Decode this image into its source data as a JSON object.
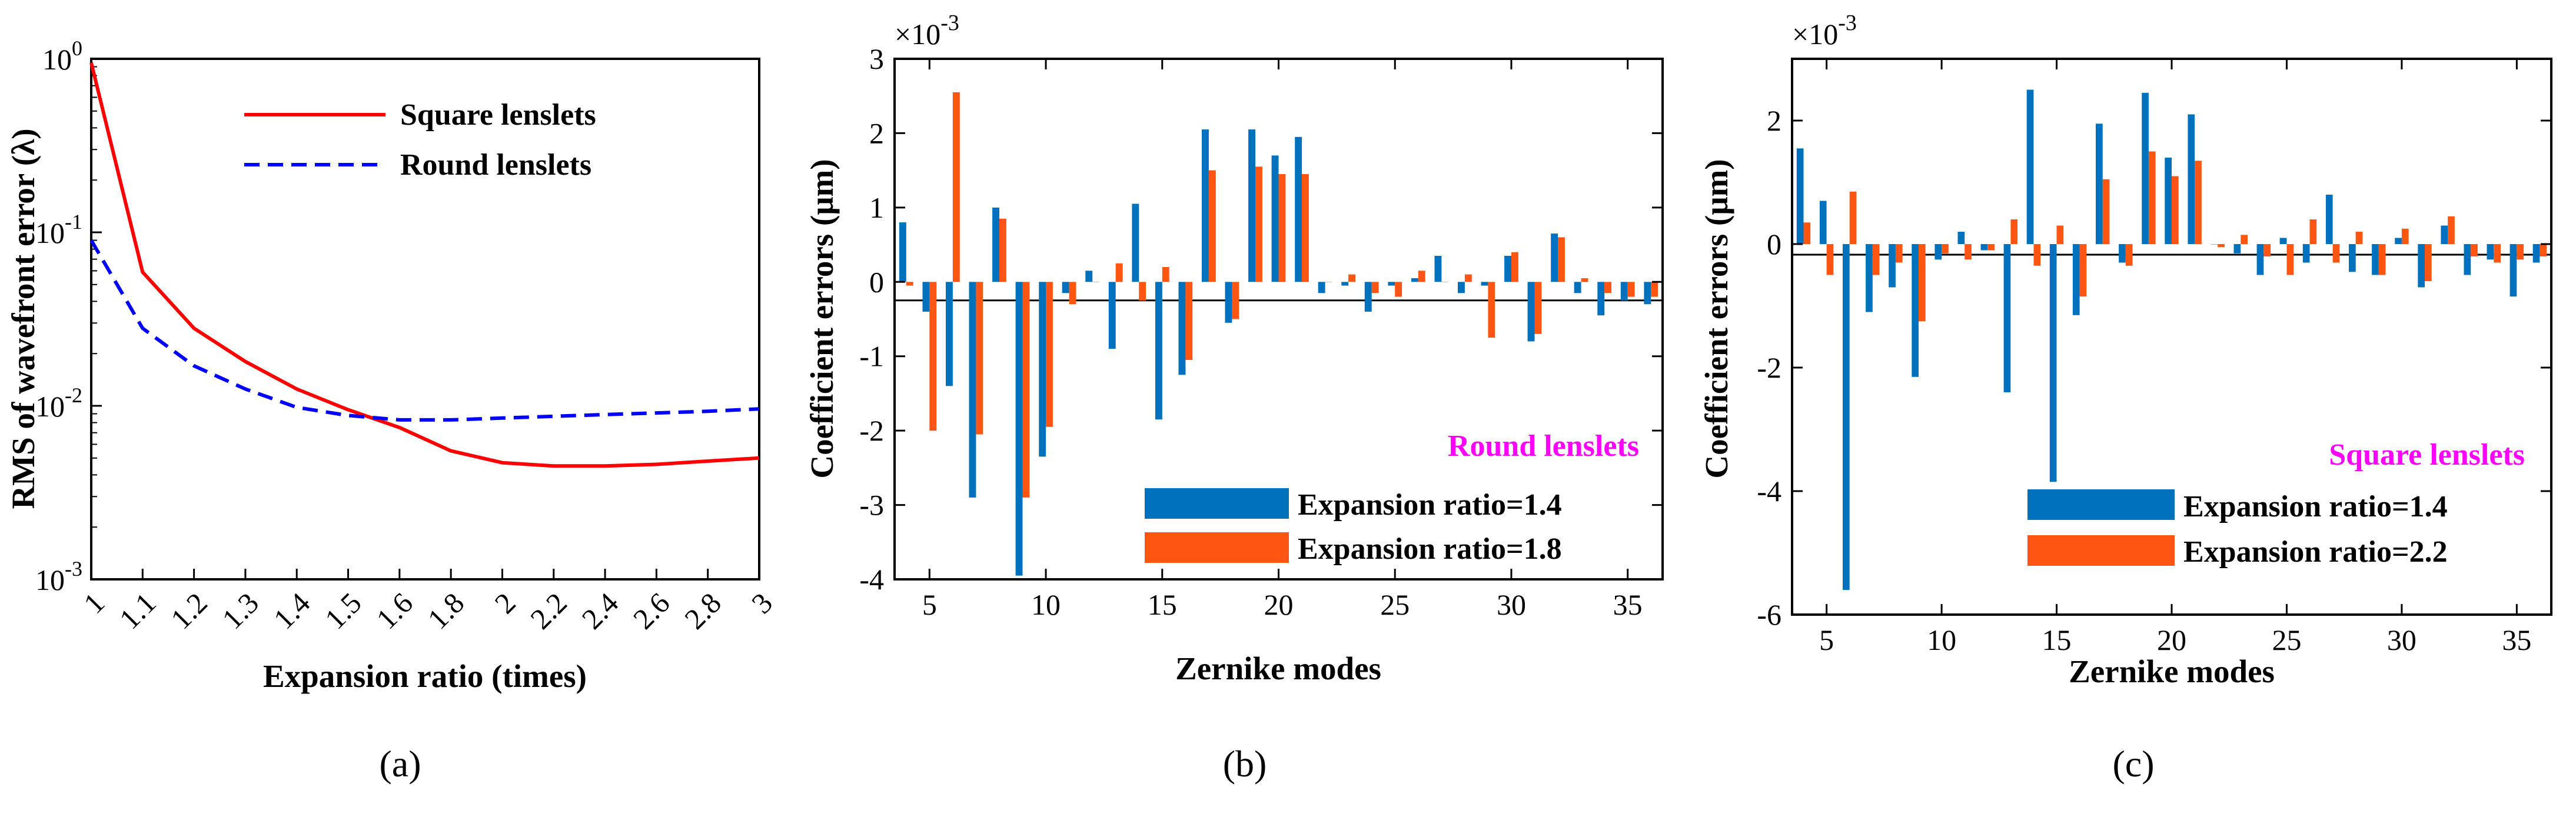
{
  "colors": {
    "red": "#ff0000",
    "blue": "#0000ff",
    "bar_blue": "#0072bd",
    "bar_orange": "#ff5512",
    "note": "#ff00ff"
  },
  "chart_data": [
    {
      "type": "line",
      "panel_label": "(a)",
      "title": "",
      "xlabel": "Expansion ratio (times)",
      "ylabel": "RMS of wavefront error (λ)",
      "yscale": "log",
      "ylim": [
        0.001,
        1
      ],
      "yticks": [
        {
          "v": 1,
          "base": "10",
          "exp": "0"
        },
        {
          "v": 0.1,
          "base": "10",
          "exp": "-1"
        },
        {
          "v": 0.01,
          "base": "10",
          "exp": "-2"
        },
        {
          "v": 0.001,
          "base": "10",
          "exp": "-3"
        }
      ],
      "categories": [
        "1",
        "1.1",
        "1.2",
        "1.3",
        "1.4",
        "1.5",
        "1.6",
        "1.8",
        "2",
        "2.2",
        "2.4",
        "2.6",
        "2.8",
        "3"
      ],
      "series": [
        {
          "name": "Square lenslets",
          "color": "#ff0000",
          "dash": "solid",
          "values": [
            0.95,
            0.059,
            0.028,
            0.018,
            0.0125,
            0.0095,
            0.0075,
            0.0055,
            0.0047,
            0.0045,
            0.0045,
            0.0046,
            0.0048,
            0.005
          ]
        },
        {
          "name": "Round lenslets",
          "color": "#0000ff",
          "dash": "dashed",
          "values": [
            0.09,
            0.028,
            0.017,
            0.0125,
            0.0098,
            0.0088,
            0.0083,
            0.0083,
            0.0085,
            0.0087,
            0.0089,
            0.0091,
            0.0093,
            0.0096
          ]
        }
      ],
      "legend_position": "top-right"
    },
    {
      "type": "bar",
      "panel_label": "(b)",
      "xlabel": "Zernike modes",
      "ylabel": "Coefficient errors (μm)",
      "scale_base": "×10",
      "scale_exp": "-3",
      "annotation": "Round lenslets",
      "ylim": [
        -4,
        3
      ],
      "yticks": [
        "-4",
        "-3",
        "-2",
        "-1",
        "0",
        "1",
        "2",
        "3"
      ],
      "xlim": [
        4,
        36
      ],
      "xticks": [
        "5",
        "10",
        "15",
        "20",
        "25",
        "30",
        "35"
      ],
      "x": [
        4,
        5,
        6,
        7,
        8,
        9,
        10,
        11,
        12,
        13,
        14,
        15,
        16,
        17,
        18,
        19,
        20,
        21,
        22,
        23,
        24,
        25,
        26,
        27,
        28,
        29,
        30,
        31,
        32,
        33,
        34,
        35,
        36
      ],
      "series": [
        {
          "name": "Expansion ratio=1.4",
          "color": "#0072bd",
          "values": [
            0.8,
            -0.4,
            -1.4,
            -2.9,
            1.0,
            -3.95,
            -2.35,
            -0.15,
            0.15,
            -0.9,
            1.05,
            -1.85,
            -1.25,
            2.05,
            -0.55,
            2.05,
            1.7,
            1.95,
            -0.15,
            -0.05,
            -0.4,
            -0.05,
            0.05,
            0.35,
            -0.15,
            -0.05,
            0.35,
            -0.8,
            0.65,
            -0.15,
            -0.45,
            -0.25,
            -0.3
          ]
        },
        {
          "name": "Expansion ratio=1.8",
          "color": "#ff5512",
          "values": [
            -0.05,
            -2.0,
            2.55,
            -2.05,
            0.85,
            -2.9,
            -1.95,
            -0.3,
            0.0,
            0.25,
            -0.25,
            0.2,
            -1.05,
            1.5,
            -0.5,
            1.55,
            1.45,
            1.45,
            0.0,
            0.1,
            -0.15,
            -0.2,
            0.15,
            0.0,
            0.1,
            -0.75,
            0.4,
            -0.7,
            0.6,
            0.05,
            -0.15,
            -0.2,
            -0.2
          ]
        }
      ],
      "legend_position": "bottom-right"
    },
    {
      "type": "bar",
      "panel_label": "(c)",
      "xlabel": "Zernike modes",
      "ylabel": "Coefficient errors (μm)",
      "scale_base": "×10",
      "scale_exp": "-3",
      "annotation": "Square lenslets",
      "ylim": [
        -6,
        3
      ],
      "yticks": [
        "-6",
        "-4",
        "-2",
        "0",
        "2"
      ],
      "xlim": [
        4,
        36
      ],
      "xticks": [
        "5",
        "10",
        "15",
        "20",
        "25",
        "30",
        "35"
      ],
      "x": [
        4,
        5,
        6,
        7,
        8,
        9,
        10,
        11,
        12,
        13,
        14,
        15,
        16,
        17,
        18,
        19,
        20,
        21,
        22,
        23,
        24,
        25,
        26,
        27,
        28,
        29,
        30,
        31,
        32,
        33,
        34,
        35,
        36
      ],
      "series": [
        {
          "name": "Expansion ratio=1.4",
          "color": "#0072bd",
          "values": [
            1.55,
            0.7,
            -5.6,
            -1.1,
            -0.7,
            -2.15,
            -0.25,
            0.2,
            -0.1,
            -2.4,
            2.5,
            -3.85,
            -1.15,
            1.95,
            -0.3,
            2.45,
            1.4,
            2.1,
            0.0,
            -0.15,
            -0.5,
            0.1,
            -0.3,
            0.8,
            -0.45,
            -0.5,
            0.1,
            -0.7,
            0.3,
            -0.5,
            -0.25,
            -0.85,
            -0.3
          ]
        },
        {
          "name": "Expansion ratio=2.2",
          "color": "#ff5512",
          "values": [
            0.35,
            -0.5,
            0.85,
            -0.5,
            -0.3,
            -1.25,
            -0.15,
            -0.25,
            -0.1,
            0.4,
            -0.35,
            0.3,
            -0.85,
            1.05,
            -0.35,
            1.5,
            1.1,
            1.35,
            -0.05,
            0.15,
            -0.2,
            -0.5,
            0.4,
            -0.3,
            0.2,
            -0.5,
            0.25,
            -0.6,
            0.45,
            -0.2,
            -0.3,
            -0.25,
            -0.2
          ]
        }
      ],
      "legend_position": "bottom-right"
    }
  ]
}
